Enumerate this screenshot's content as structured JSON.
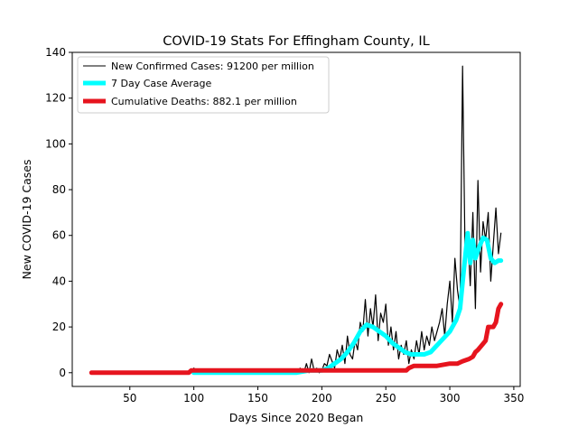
{
  "chart_data": {
    "type": "line",
    "title": "COVID-19 Stats For Effingham County, IL",
    "xlabel": "Days Since 2020 Began",
    "ylabel": "New COVID-19 Cases",
    "xlim": [
      5,
      355
    ],
    "ylim": [
      -6,
      140
    ],
    "xticks": [
      50,
      100,
      150,
      200,
      250,
      300,
      350
    ],
    "yticks": [
      0,
      20,
      40,
      60,
      80,
      100,
      120,
      140
    ],
    "grid": false,
    "legend_position": "top-left",
    "series": [
      {
        "name": "New Confirmed Cases: 91200 per million",
        "color": "#000000",
        "x": [
          20,
          40,
          60,
          80,
          98,
          100,
          104,
          110,
          120,
          130,
          140,
          150,
          160,
          170,
          180,
          183,
          186,
          188,
          190,
          192,
          194,
          196,
          198,
          200,
          202,
          204,
          206,
          208,
          210,
          212,
          214,
          216,
          218,
          220,
          222,
          224,
          226,
          228,
          230,
          232,
          234,
          236,
          238,
          240,
          242,
          244,
          246,
          248,
          250,
          252,
          254,
          256,
          258,
          260,
          262,
          264,
          266,
          268,
          270,
          272,
          274,
          276,
          278,
          280,
          282,
          284,
          286,
          288,
          290,
          292,
          294,
          296,
          298,
          300,
          302,
          304,
          306,
          308,
          310,
          312,
          314,
          316,
          318,
          320,
          322,
          324,
          326,
          328,
          330,
          332,
          334,
          336,
          338,
          340
        ],
        "y": [
          0,
          0,
          0,
          0,
          0,
          2,
          0,
          1,
          0,
          0,
          0,
          1,
          0,
          0,
          0,
          2,
          0,
          4,
          0,
          6,
          1,
          2,
          0,
          1,
          4,
          3,
          8,
          5,
          2,
          10,
          6,
          12,
          4,
          16,
          8,
          6,
          14,
          10,
          22,
          18,
          32,
          16,
          28,
          20,
          34,
          14,
          26,
          22,
          30,
          12,
          20,
          10,
          18,
          6,
          12,
          8,
          14,
          4,
          10,
          6,
          14,
          8,
          18,
          10,
          16,
          12,
          20,
          14,
          18,
          22,
          28,
          16,
          30,
          40,
          22,
          50,
          36,
          28,
          134,
          48,
          60,
          38,
          70,
          28,
          84,
          44,
          66,
          58,
          70,
          40,
          56,
          72,
          52,
          61
        ]
      },
      {
        "name": "7 Day Case Average",
        "color": "#00ffff",
        "x": [
          100,
          110,
          120,
          130,
          140,
          150,
          160,
          170,
          180,
          190,
          200,
          205,
          210,
          215,
          220,
          225,
          230,
          235,
          240,
          245,
          250,
          255,
          260,
          265,
          270,
          275,
          280,
          285,
          290,
          295,
          300,
          305,
          308,
          311,
          314,
          316,
          318,
          320,
          323,
          326,
          329,
          332,
          335,
          338,
          340
        ],
        "y": [
          0,
          0,
          0,
          0,
          0,
          0,
          0,
          0,
          0,
          1,
          1,
          2,
          4,
          6,
          9,
          13,
          18,
          21,
          20,
          18,
          16,
          13,
          11,
          9,
          8,
          8,
          8,
          9,
          12,
          15,
          18,
          23,
          28,
          45,
          61,
          48,
          58,
          50,
          55,
          59,
          58,
          50,
          48,
          49,
          49
        ]
      },
      {
        "name": "Cumulative Deaths: 882.1 per million",
        "color": "#e6141e",
        "x": [
          20,
          40,
          60,
          80,
          96,
          98,
          100,
          120,
          140,
          160,
          180,
          200,
          220,
          240,
          260,
          266,
          268,
          272,
          280,
          290,
          300,
          306,
          310,
          315,
          318,
          320,
          322,
          325,
          328,
          330,
          332,
          334,
          336,
          338,
          340
        ],
        "y": [
          0,
          0,
          0,
          0,
          0,
          1,
          1,
          1,
          1,
          1,
          1,
          1,
          1,
          1,
          1,
          1,
          2,
          3,
          3,
          3,
          4,
          4,
          5,
          6,
          7,
          9,
          10,
          12,
          14,
          20,
          20,
          20,
          22,
          28,
          30
        ]
      }
    ]
  }
}
